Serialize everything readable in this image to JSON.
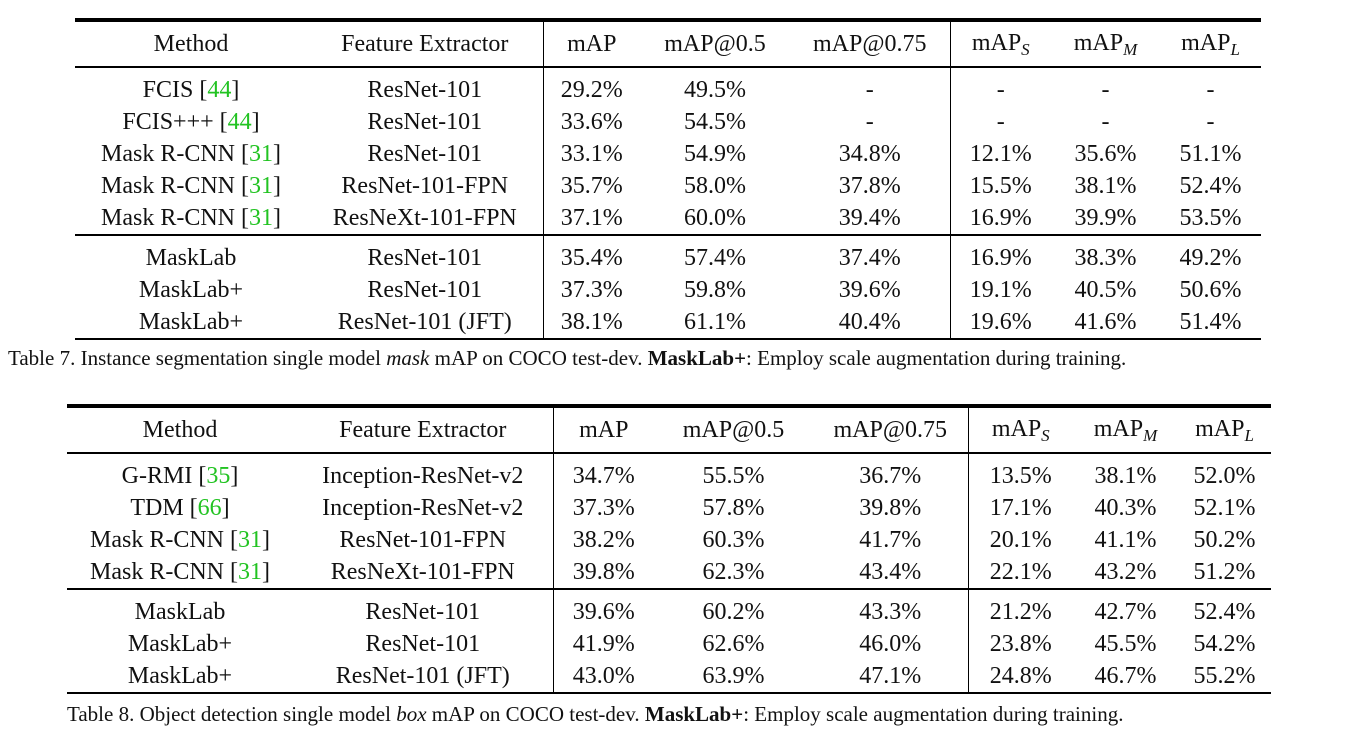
{
  "headers": {
    "method": "Method",
    "feature": "Feature Extractor",
    "map": "mAP",
    "map50": "mAP@0.5",
    "map75": "mAP@0.75",
    "mapS_base": "mAP",
    "mapS_sub": "S",
    "mapM_base": "mAP",
    "mapM_sub": "M",
    "mapL_base": "mAP",
    "mapL_sub": "L"
  },
  "table7": {
    "rows": [
      {
        "method": "FCIS ",
        "cite": "44",
        "feature": "ResNet-101",
        "map": "29.2%",
        "map50": "49.5%",
        "map75": "-",
        "mapS": "-",
        "mapM": "-",
        "mapL": "-"
      },
      {
        "method": "FCIS+++ ",
        "cite": "44",
        "feature": "ResNet-101",
        "map": "33.6%",
        "map50": "54.5%",
        "map75": "-",
        "mapS": "-",
        "mapM": "-",
        "mapL": "-"
      },
      {
        "method": "Mask R-CNN ",
        "cite": "31",
        "feature": "ResNet-101",
        "map": "33.1%",
        "map50": "54.9%",
        "map75": "34.8%",
        "mapS": "12.1%",
        "mapM": "35.6%",
        "mapL": "51.1%"
      },
      {
        "method": "Mask R-CNN ",
        "cite": "31",
        "feature": "ResNet-101-FPN",
        "map": "35.7%",
        "map50": "58.0%",
        "map75": "37.8%",
        "mapS": "15.5%",
        "mapM": "38.1%",
        "mapL": "52.4%"
      },
      {
        "method": "Mask R-CNN ",
        "cite": "31",
        "feature": "ResNeXt-101-FPN",
        "map": "37.1%",
        "map50": "60.0%",
        "map75": "39.4%",
        "mapS": "16.9%",
        "mapM": "39.9%",
        "mapL": "53.5%"
      },
      {
        "method": "MaskLab",
        "feature": "ResNet-101",
        "map": "35.4%",
        "map50": "57.4%",
        "map75": "37.4%",
        "mapS": "16.9%",
        "mapM": "38.3%",
        "mapL": "49.2%"
      },
      {
        "method": "MaskLab+",
        "feature": "ResNet-101",
        "map": "37.3%",
        "map50": "59.8%",
        "map75": "39.6%",
        "mapS": "19.1%",
        "mapM": "40.5%",
        "mapL": "50.6%"
      },
      {
        "method": "MaskLab+",
        "feature": "ResNet-101 (JFT)",
        "map": "38.1%",
        "map50": "61.1%",
        "map75": "40.4%",
        "mapS": "19.6%",
        "mapM": "41.6%",
        "mapL": "51.4%"
      }
    ],
    "caption_prefix": "Table 7. Instance segmentation single model ",
    "caption_em": "mask",
    "caption_mid": " mAP on COCO test-dev. ",
    "caption_bold": "MaskLab+",
    "caption_suffix": ": Employ scale augmentation during training."
  },
  "table8": {
    "rows": [
      {
        "method": "G-RMI ",
        "cite": "35",
        "feature": "Inception-ResNet-v2",
        "map": "34.7%",
        "map50": "55.5%",
        "map75": "36.7%",
        "mapS": "13.5%",
        "mapM": "38.1%",
        "mapL": "52.0%"
      },
      {
        "method": "TDM ",
        "cite": "66",
        "feature": "Inception-ResNet-v2",
        "map": "37.3%",
        "map50": "57.8%",
        "map75": "39.8%",
        "mapS": "17.1%",
        "mapM": "40.3%",
        "mapL": "52.1%"
      },
      {
        "method": "Mask R-CNN ",
        "cite": "31",
        "feature": "ResNet-101-FPN",
        "map": "38.2%",
        "map50": "60.3%",
        "map75": "41.7%",
        "mapS": "20.1%",
        "mapM": "41.1%",
        "mapL": "50.2%"
      },
      {
        "method": "Mask R-CNN ",
        "cite": "31",
        "feature": "ResNeXt-101-FPN",
        "map": "39.8%",
        "map50": "62.3%",
        "map75": "43.4%",
        "mapS": "22.1%",
        "mapM": "43.2%",
        "mapL": "51.2%"
      },
      {
        "method": "MaskLab",
        "feature": "ResNet-101",
        "map": "39.6%",
        "map50": "60.2%",
        "map75": "43.3%",
        "mapS": "21.2%",
        "mapM": "42.7%",
        "mapL": "52.4%"
      },
      {
        "method": "MaskLab+",
        "feature": "ResNet-101",
        "map": "41.9%",
        "map50": "62.6%",
        "map75": "46.0%",
        "mapS": "23.8%",
        "mapM": "45.5%",
        "mapL": "54.2%"
      },
      {
        "method": "MaskLab+",
        "feature": "ResNet-101 (JFT)",
        "map": "43.0%",
        "map50": "63.9%",
        "map75": "47.1%",
        "mapS": "24.8%",
        "mapM": "46.7%",
        "mapL": "55.2%"
      }
    ],
    "caption_prefix": "Table 8. Object detection single model ",
    "caption_em": "box",
    "caption_mid": " mAP on COCO test-dev. ",
    "caption_bold": "MaskLab+",
    "caption_suffix": ": Employ scale augmentation during training."
  },
  "colors": {
    "cite": "#22c322",
    "rule": "#000000"
  }
}
